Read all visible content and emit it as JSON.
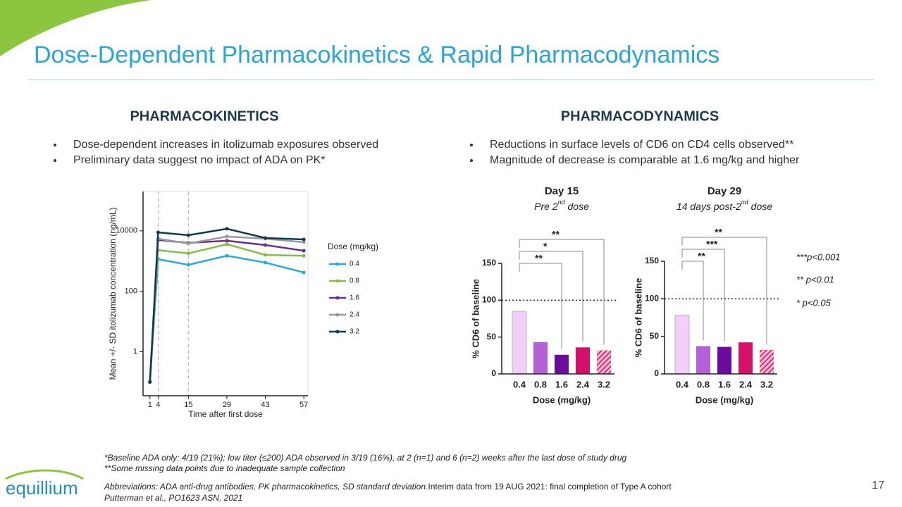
{
  "title": "Dose-Dependent Pharmacokinetics & Rapid Pharmacodynamics",
  "sections": [
    {
      "heading": "PHARMACOKINETICS",
      "bullets": [
        "Dose-dependent increases in itolizumab exposures observed",
        "Preliminary data suggest no impact of ADA on PK*"
      ]
    },
    {
      "heading": "PHARMACODYNAMICS",
      "bullets": [
        "Reductions in surface levels of CD6 on CD4 cells observed**",
        "Magnitude of decrease is comparable at 1.6 mg/kg and higher"
      ]
    }
  ],
  "chart_data": [
    {
      "type": "line",
      "x": [
        1,
        4,
        15,
        29,
        43,
        57
      ],
      "xlim": [
        -1.5,
        58.5
      ],
      "xticks": [
        1,
        4,
        15,
        29,
        43,
        57
      ],
      "ylim": [
        0.035,
        200000
      ],
      "log_y": true,
      "yticks": [
        1,
        100,
        10000
      ],
      "y_label": "Mean +/- SD itolizumab concentration (ng/mL)",
      "x_label": "Time after first dose",
      "legend_title": "Dose (mg/kg)",
      "reference_lines_x": [
        4,
        15
      ],
      "series": [
        {
          "name": "0.4",
          "color": "#29a9e0",
          "values": [
            0.1,
            1150,
            750,
            1500,
            890,
            420
          ]
        },
        {
          "name": "0.8",
          "color": "#7dc242",
          "values": [
            0.1,
            2300,
            1800,
            3600,
            1600,
            1500
          ]
        },
        {
          "name": "1.6",
          "color": "#6a2c91",
          "values": [
            0.1,
            5000,
            4000,
            4700,
            3400,
            2200
          ]
        },
        {
          "name": "2.4",
          "color": "#9a9a9a",
          "values": [
            0.1,
            5500,
            3800,
            6500,
            5500,
            4200
          ]
        },
        {
          "name": "3.2",
          "color": "#0d3b4f",
          "values": [
            0.1,
            8900,
            7200,
            11700,
            5800,
            5200
          ]
        }
      ]
    },
    {
      "type": "bar",
      "title": "Day 15",
      "subtitle_parts": [
        "Pre 2",
        "nd",
        " dose"
      ],
      "categories": [
        "0.4",
        "0.8",
        "1.6",
        "2.4",
        "3.2"
      ],
      "values": [
        85,
        43,
        26,
        36,
        32
      ],
      "colors": [
        "#f0d0f5",
        "#b660d8",
        "#6a0d9c",
        "#d6106a",
        "#d6106a"
      ],
      "hatched": [
        false,
        false,
        false,
        false,
        true
      ],
      "ylim": [
        0,
        150
      ],
      "yticks": [
        0,
        50,
        100,
        150
      ],
      "reference_line": 100,
      "x_label": "Dose (mg/kg)",
      "y_label": "% CD6 of baseline",
      "annotations": [
        {
          "label": "**",
          "from": "0.4",
          "to": "1.6"
        },
        {
          "label": "*",
          "from": "0.4",
          "to": "2.4"
        },
        {
          "label": "**",
          "from": "0.4",
          "to": "3.2"
        }
      ]
    },
    {
      "type": "bar",
      "title": "Day 29",
      "subtitle_parts": [
        "14 days post-2",
        "nd",
        " dose"
      ],
      "categories": [
        "0.4",
        "0.8",
        "1.6",
        "2.4",
        "3.2"
      ],
      "values": [
        78,
        37,
        36,
        42,
        32
      ],
      "colors": [
        "#f0d0f5",
        "#b660d8",
        "#6a0d9c",
        "#d6106a",
        "#d6106a"
      ],
      "hatched": [
        false,
        false,
        false,
        false,
        true
      ],
      "ylim": [
        0,
        150
      ],
      "yticks": [
        0,
        50,
        100,
        150
      ],
      "reference_line": 100,
      "x_label": "Dose (mg/kg)",
      "y_label": "% CD6 of baseline",
      "annotations": [
        {
          "label": "**",
          "from": "0.4",
          "to": "0.8"
        },
        {
          "label": "***",
          "from": "0.4",
          "to": "1.6"
        },
        {
          "label": "**",
          "from": "0.4",
          "to": "3.2"
        }
      ]
    }
  ],
  "significance_legend": [
    "***p<0.001",
    "** p<0.01",
    "* p<0.05"
  ],
  "footnotes": [
    "*Baseline ADA only: 4/19 (21%); low titer (≤200) ADA observed in 3/19 (16%), at 2 (n=1) and 6 (n=2) weeks after the last dose of study drug",
    "**Some missing data points due to inadequate sample collection"
  ],
  "abbreviations": "Abbreviations: ADA anti-drug antibodies, PK pharmacokinetics, SD standard deviation.",
  "interim": "Interim data from 19 AUG 2021: final completion of Type A cohort",
  "reference": "Putterman et al., PO1623 ASN, 2021",
  "page_number": "17",
  "logo": "equillium"
}
